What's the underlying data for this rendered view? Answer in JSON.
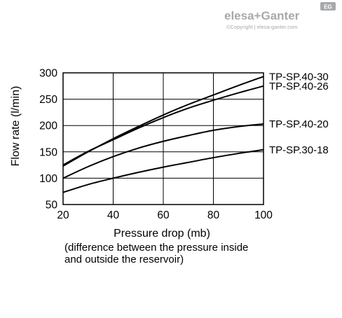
{
  "logo": {
    "brand": "elesa+Ganter",
    "copyright": "©Copyright | elesa-ganter.com",
    "badge": "EG"
  },
  "chart_data": {
    "type": "line",
    "title": "",
    "xlabel": "Pressure drop (mb)",
    "xlabel_note": [
      "(difference between the pressure inside",
      "and outside the reservoir)"
    ],
    "ylabel": "Flow rate (l/min)",
    "xlim": [
      20,
      100
    ],
    "ylim": [
      50,
      300
    ],
    "xticks": [
      20,
      40,
      60,
      80,
      100
    ],
    "yticks": [
      50,
      100,
      150,
      200,
      250,
      300
    ],
    "grid": true,
    "legend": "labels at right end of each line",
    "series": [
      {
        "name": "TP-SP.40-30",
        "x": [
          20,
          30,
          40,
          50,
          60,
          70,
          80,
          90,
          100
        ],
        "values": [
          123,
          150,
          175,
          198,
          220,
          240,
          258,
          276,
          293
        ]
      },
      {
        "name": "TP-SP.40-26",
        "x": [
          20,
          30,
          40,
          50,
          60,
          70,
          80,
          90,
          100
        ],
        "values": [
          125,
          151,
          173,
          195,
          215,
          233,
          248,
          262,
          275
        ]
      },
      {
        "name": "TP-SP.40-20",
        "x": [
          20,
          30,
          40,
          50,
          60,
          70,
          80,
          90,
          100
        ],
        "values": [
          100,
          122,
          141,
          157,
          170,
          181,
          191,
          198,
          203
        ]
      },
      {
        "name": "TP-SP.30-18",
        "x": [
          20,
          30,
          40,
          50,
          60,
          70,
          80,
          90,
          100
        ],
        "values": [
          73,
          88,
          100,
          111,
          121,
          130,
          139,
          147,
          154
        ]
      }
    ]
  }
}
